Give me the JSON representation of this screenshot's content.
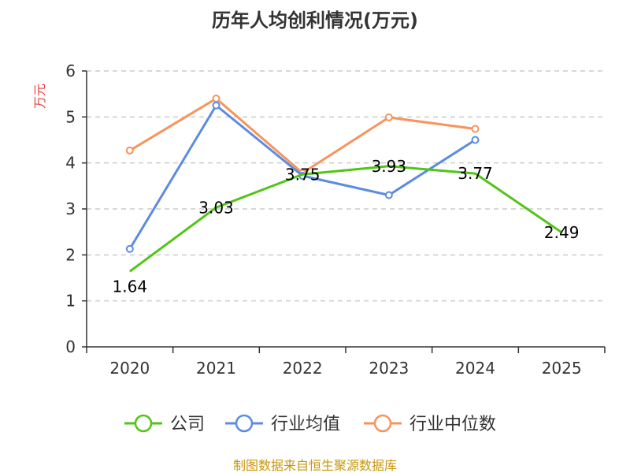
{
  "chart_data": {
    "type": "line",
    "title": "历年人均创利情况(万元)",
    "ylabel": "万元",
    "xlabel": "",
    "categories": [
      "2020",
      "2021",
      "2022",
      "2023",
      "2024",
      "2025"
    ],
    "ylim": [
      0,
      6
    ],
    "yticks": [
      0,
      1,
      2,
      3,
      4,
      5,
      6
    ],
    "grid": true,
    "legend_position": "bottom",
    "series": [
      {
        "name": "公司",
        "color": "#52c41a",
        "values": [
          1.64,
          3.03,
          3.75,
          3.93,
          3.77,
          2.49
        ],
        "data_labels": [
          "1.64",
          "3.03",
          "3.75",
          "3.93",
          "3.77",
          "2.49"
        ]
      },
      {
        "name": "行业均值",
        "color": "#5b8ce0",
        "values": [
          2.13,
          5.25,
          3.72,
          3.3,
          4.5,
          null
        ]
      },
      {
        "name": "行业中位数",
        "color": "#f7945c",
        "values": [
          4.27,
          5.4,
          3.78,
          4.99,
          4.74,
          null
        ]
      }
    ],
    "source": "制图数据来自恒生聚源数据库"
  }
}
